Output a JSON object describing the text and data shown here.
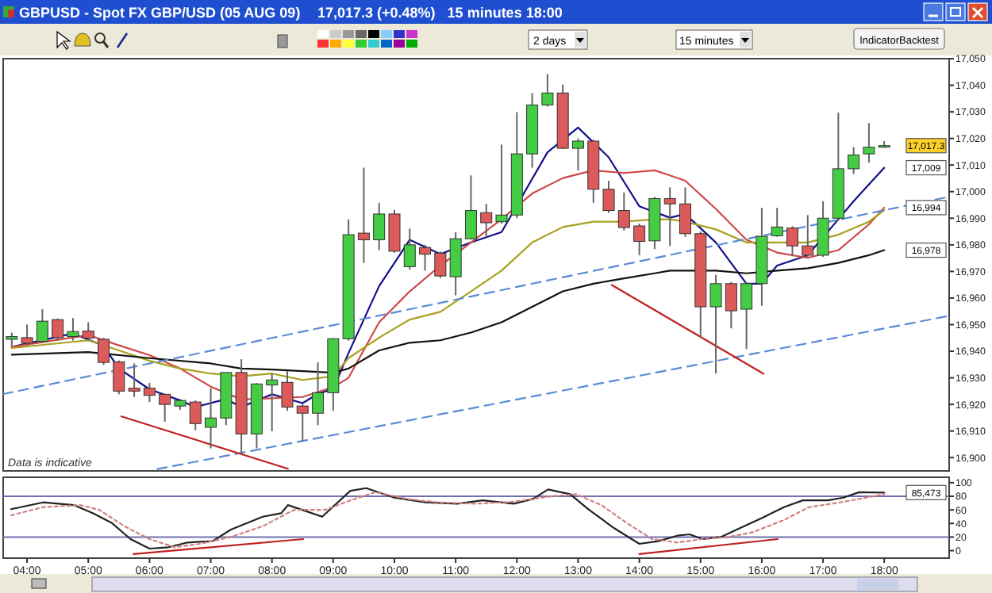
{
  "chart_data": [
    {
      "type": "candlestick",
      "title": "GBPUSD - Spot FX GBP/USD (05 AUG 09)",
      "subtitle": "17,017.3 (+0.48%)   15 minutes 18:00",
      "x": [
        3.75,
        4,
        4.25,
        4.5,
        4.75,
        5,
        5.25,
        5.5,
        5.75,
        6,
        6.25,
        6.5,
        6.75,
        7,
        7.25,
        7.5,
        7.75,
        8,
        8.25,
        8.5,
        8.75,
        9,
        9.25,
        9.5,
        9.75,
        10,
        10.25,
        10.5,
        10.75,
        11,
        11.25,
        11.5,
        11.75,
        12,
        12.25,
        12.5,
        12.75,
        13,
        13.25,
        13.5,
        13.75,
        14,
        14.25,
        14.5,
        14.75,
        15,
        15.25,
        15.5,
        15.75,
        16,
        16.25,
        16.5,
        16.75,
        17,
        17.25,
        17.5,
        17.75,
        18
      ],
      "ohlc": [
        [
          16944.5,
          16947,
          16942,
          16945.5
        ],
        [
          16945.1,
          16950,
          16942.2,
          16943
        ],
        [
          16943.7,
          16955.8,
          16943,
          16951.3
        ],
        [
          16951.9,
          16952.3,
          16944,
          16945.1
        ],
        [
          16945.5,
          16952.5,
          16944,
          16947.4
        ],
        [
          16947.6,
          16950.9,
          16944,
          16944.9
        ],
        [
          16944.5,
          16945,
          16934.8,
          16935.8
        ],
        [
          16936,
          16936.5,
          16923.8,
          16925
        ],
        [
          16926.1,
          16935.4,
          16922.8,
          16925
        ],
        [
          16926.1,
          16928.1,
          16920.9,
          16923.4
        ],
        [
          16923.8,
          16924,
          16913.5,
          16920
        ],
        [
          16919.4,
          16922,
          16918,
          16921.5
        ],
        [
          16920.9,
          16921.5,
          16910.3,
          16912.8
        ],
        [
          16911.4,
          16926.1,
          16903.5,
          16914.9
        ],
        [
          16914.9,
          16932,
          16912.2,
          16932
        ],
        [
          16932,
          16937,
          16901.6,
          16908.9
        ],
        [
          16908.9,
          16928,
          16903.5,
          16927.7
        ],
        [
          16927.3,
          16931.6,
          16909.9,
          16929.2
        ],
        [
          16928.3,
          16932.5,
          16917.6,
          16919
        ],
        [
          16919.4,
          16920,
          16906,
          16916.7
        ],
        [
          16916.7,
          16935.8,
          16912.2,
          16924.4
        ],
        [
          16924.4,
          16945,
          16917.6,
          16944.7
        ],
        [
          16944.7,
          16989.6,
          16944,
          16983.8
        ],
        [
          16984.4,
          17009,
          16973.2,
          16981.9
        ],
        [
          16981.9,
          16995.8,
          16978,
          16991.6
        ],
        [
          16991.6,
          16993.1,
          16977,
          16977.6
        ],
        [
          16971.8,
          16986.1,
          16970.7,
          16980
        ],
        [
          16979,
          16980,
          16970.3,
          16976.5
        ],
        [
          16976.9,
          16977.5,
          16967.5,
          16968.3
        ],
        [
          16968,
          16984.8,
          16961,
          16982.3
        ],
        [
          16982.3,
          17006.1,
          16982,
          16992.9
        ],
        [
          16992.1,
          16995.4,
          16982.9,
          16988.3
        ],
        [
          16988.7,
          17017.7,
          16988,
          16991.2
        ],
        [
          16991.2,
          17029.9,
          16990,
          17014.2
        ],
        [
          17014.2,
          17037.1,
          17009,
          17032.6
        ],
        [
          17032.6,
          17044.2,
          17032,
          17037.1
        ],
        [
          17037.1,
          17040.3,
          17016,
          17016.3
        ],
        [
          17016.3,
          17020,
          17008,
          17019
        ],
        [
          17019,
          17019.5,
          16995.8,
          17000.9
        ],
        [
          17000.9,
          17004.1,
          16992,
          16992.9
        ],
        [
          16992.9,
          16999.7,
          16985.4,
          16986.5
        ],
        [
          16987.1,
          16988,
          16976.1,
          16981.3
        ],
        [
          16981.5,
          16998,
          16978.4,
          16997.4
        ],
        [
          16997.4,
          17001.6,
          16979.6,
          16995.4
        ],
        [
          16995.4,
          17001.6,
          16983,
          16984.2
        ],
        [
          16984.2,
          16985,
          16945.1,
          16956.7
        ],
        [
          16956.7,
          16968.7,
          16931.6,
          16965.4
        ],
        [
          16965.4,
          16966,
          16948.6,
          16955.2
        ],
        [
          16955.8,
          16966,
          16940.8,
          16965.4
        ],
        [
          16965.4,
          16993.9,
          16957.1,
          16983.2
        ],
        [
          16983.4,
          16993.9,
          16983,
          16986.7
        ],
        [
          16986.3,
          16987,
          16975.7,
          16979.6
        ],
        [
          16979.6,
          16991.2,
          16975.5,
          16976.1
        ],
        [
          16976.1,
          16996.4,
          16975.5,
          16990
        ],
        [
          16990,
          17029.7,
          16989,
          17008.6
        ],
        [
          17008.6,
          17016.7,
          17006.7,
          17013.8
        ],
        [
          17014.2,
          17025.8,
          17010.9,
          17016.7
        ],
        [
          17016.8,
          17019,
          17016.5,
          17017.3
        ]
      ],
      "series": [
        {
          "type": "line",
          "color": "#11118a",
          "x": [
            3.75,
            4.75,
            5.25,
            5.5,
            6,
            6.5,
            6.75,
            7.25,
            7.5,
            8,
            8.5,
            8.75,
            9,
            9.25,
            9.75,
            10.25,
            10.75,
            11.25,
            11.75,
            12,
            12.5,
            13,
            13.5,
            14,
            14.5,
            14.75,
            15.25,
            15.75,
            16,
            16.25,
            16.75,
            17.25,
            17.5,
            18
          ],
          "values": [
            16941.6,
            16946.7,
            16942,
            16933.5,
            16925.7,
            16921.5,
            16919,
            16922,
            16919,
            16923.8,
            16920.5,
            16924,
            16925.8,
            16939.3,
            16964.5,
            16981.9,
            16976.5,
            16980.9,
            16984.8,
            null,
            17014.8,
            17024.1,
            17012.9,
            16994.5,
            16990.2,
            16991.6,
            16980.9,
            16965.4,
            16965.4,
            16972.2,
            16976.1,
            16989.6,
            16996.4,
            17009
          ]
        },
        {
          "type": "line",
          "color": "#d04848",
          "x": [
            3.75,
            5,
            5.5,
            6,
            6.5,
            7,
            7.5,
            8,
            8.5,
            9,
            9.25,
            9.75,
            10.25,
            10.75,
            11.25,
            11.75,
            12.25,
            12.75,
            13.25,
            13.75,
            14.25,
            14.5,
            14.75,
            15.25,
            15.75,
            16.25,
            16.75,
            17.25,
            17.75,
            18
          ],
          "values": [
            16941.6,
            16946.1,
            16942.2,
            16938.5,
            16933.5,
            16926.7,
            16921.9,
            16922.3,
            16922.8,
            16926.5,
            16930,
            16950.9,
            16962.5,
            16972.2,
            16980.9,
            16989.6,
            16999.3,
            17005.1,
            17008,
            17007,
            17008,
            17006.1,
            17004.1,
            16993.5,
            16981.9,
            16977.1,
            16975.1,
            16978,
            16987.7,
            16994
          ]
        },
        {
          "type": "line",
          "color": "#a8a020",
          "x": [
            3.75,
            5,
            5.5,
            6,
            6.5,
            7,
            7.5,
            8,
            8.5,
            9,
            9.25,
            9.75,
            10.25,
            10.75,
            11.25,
            11.75,
            12.25,
            12.75,
            13.25,
            13.75,
            14.25,
            14.5,
            14.75,
            15.25,
            15.75,
            16.25,
            16.75,
            17.25,
            17.75,
            18
          ],
          "values": [
            16941.2,
            16944.1,
            16940.3,
            16936.4,
            16933.5,
            16931.6,
            16930.6,
            16931.6,
            16929.2,
            16930.6,
            16937.4,
            16945.1,
            16951.9,
            16954.8,
            16962.5,
            16970.3,
            16980.9,
            16986.7,
            16988.7,
            16988.7,
            16989.6,
            16989.6,
            16988.7,
            16985.8,
            16980.9,
            16980.9,
            16980.9,
            16983.8,
            16988.7,
            16993
          ]
        },
        {
          "type": "line",
          "color": "#111111",
          "x": [
            3.75,
            5,
            6,
            7,
            7.5,
            8,
            8.5,
            9,
            9.25,
            9.75,
            10.25,
            10.75,
            11.25,
            11.75,
            12.25,
            12.75,
            13.25,
            13.75,
            14.25,
            14.5,
            14.75,
            15.25,
            15.75,
            16.25,
            16.75,
            17.25,
            17.75,
            18
          ],
          "values": [
            16938.7,
            16939.7,
            16937.4,
            16935.4,
            16933.5,
            16933.1,
            16932.5,
            16931.9,
            16933.5,
            16940.3,
            16943.2,
            16944.1,
            16947,
            16950.9,
            16956.7,
            16962.5,
            16965.4,
            16967.4,
            16969.3,
            16970.3,
            16970.3,
            16970.3,
            16969.3,
            16970.3,
            16971.2,
            16973.2,
            16976.1,
            16978
          ]
        },
        {
          "type": "line",
          "color": "#5b8bd6",
          "line_style": "dashed",
          "x": [
            3.61,
            19.06
          ],
          "values": [
            16923.9,
            16998.1
          ]
        },
        {
          "type": "line",
          "color": "#5b8bd6",
          "line_style": "dashed",
          "x": [
            6.13,
            19.06
          ],
          "values": [
            16895.7,
            16953.3
          ]
        },
        {
          "type": "line",
          "color": "#c02020",
          "x": [
            5.54,
            8.26
          ],
          "values": [
            16915.5,
            16895.8
          ]
        },
        {
          "type": "line",
          "color": "#c02020",
          "x": [
            13.55,
            16.03
          ],
          "values": [
            16964.9,
            16931.5
          ]
        }
      ],
      "xlim": [
        3.61,
        19.06
      ],
      "ylim": [
        16895,
        17050
      ],
      "yticks": [
        {
          "value": 16900,
          "label": "16,900"
        },
        {
          "value": 16910,
          "label": "16,910"
        },
        {
          "value": 16920,
          "label": "16,920"
        },
        {
          "value": 16930,
          "label": "16,930"
        },
        {
          "value": 16940,
          "label": "16,940"
        },
        {
          "value": 16950,
          "label": "16,950"
        },
        {
          "value": 16960,
          "label": "16,960"
        },
        {
          "value": 16970,
          "label": "16,970"
        },
        {
          "value": 16980,
          "label": "16,980"
        },
        {
          "value": 16990,
          "label": "16,990"
        },
        {
          "value": 17000,
          "label": "17,000"
        },
        {
          "value": 17010,
          "label": "17,010"
        },
        {
          "value": 17020,
          "label": "17,020"
        },
        {
          "value": 17030,
          "label": "17,030"
        },
        {
          "value": 17040,
          "label": "17,040"
        },
        {
          "value": 17050,
          "label": "17,050"
        }
      ],
      "tick_labels": "y",
      "annotations": [
        "Data is indicative",
        "2 days",
        "15 minutes",
        "IndicatorBacktest",
        {
          "text": "17,017.3",
          "y": 17017.3
        },
        {
          "text": "17,009",
          "y": 17009
        },
        {
          "text": "16,994",
          "y": 16994
        },
        {
          "text": "16,978",
          "y": 16978
        }
      ]
    },
    {
      "type": "line",
      "xlim": [
        3.61,
        19.06
      ],
      "ylim": [
        -11,
        108
      ],
      "series": [
        {
          "color": "#222222",
          "x": [
            3.74,
            4.26,
            4.77,
            5.08,
            5.38,
            5.69,
            6,
            6.31,
            6.62,
            7.03,
            7.33,
            7.85,
            8.15,
            8.26,
            8.56,
            8.82,
            9.28,
            9.54,
            10,
            10.51,
            11.03,
            11.44,
            11.95,
            12.26,
            12.51,
            12.87,
            13.18,
            13.59,
            14,
            14.31,
            14.62,
            14.82,
            15.03,
            15.33,
            15.64,
            16,
            16.36,
            16.67,
            17.08,
            17.33,
            17.59,
            18
          ],
          "values": [
            61,
            71,
            67,
            55,
            41,
            17,
            3,
            5,
            12,
            14,
            31,
            50,
            55,
            67,
            58,
            50,
            88,
            92,
            78,
            71,
            69,
            74,
            69,
            76,
            90,
            83,
            60,
            33,
            10,
            14,
            22,
            24,
            17,
            20,
            33,
            48,
            64,
            74,
            74,
            78,
            86,
            85.473
          ]
        },
        {
          "color": "#d08080",
          "line_style": "dotted",
          "x": [
            3.74,
            4.26,
            4.87,
            5.18,
            5.59,
            6,
            6.41,
            6.82,
            7.33,
            7.85,
            8.36,
            8.87,
            9.28,
            9.69,
            10.21,
            10.72,
            11.33,
            11.95,
            12.56,
            12.97,
            13.38,
            13.79,
            14.21,
            14.62,
            15.03,
            15.44,
            15.85,
            16.36,
            16.77,
            17.28,
            18
          ],
          "values": [
            52,
            64,
            67,
            60,
            36,
            17,
            5,
            10,
            20,
            36,
            60,
            60,
            74,
            86,
            76,
            71,
            69,
            72,
            80,
            83,
            67,
            41,
            17,
            12,
            17,
            20,
            27,
            45,
            64,
            71,
            83
          ]
        },
        {
          "color": "#c02020",
          "x": [
            5.74,
            8.51
          ],
          "values": [
            -5,
            17
          ]
        },
        {
          "color": "#c02020",
          "x": [
            14,
            16.26
          ],
          "values": [
            -5,
            17
          ]
        }
      ],
      "annotations": [
        {
          "text": "85,473",
          "y": 85.473
        }
      ],
      "ref_lines": [
        {
          "axis": "y",
          "value": 80,
          "color": "#7070b0"
        },
        {
          "axis": "y",
          "value": 20,
          "color": "#7070b0"
        }
      ],
      "yticks": [
        0,
        20,
        40,
        60,
        80,
        100
      ],
      "xticks": [
        {
          "value": 4,
          "label": "04:00"
        },
        {
          "value": 5,
          "label": "05:00"
        },
        {
          "value": 6,
          "label": "06:00"
        },
        {
          "value": 7,
          "label": "07:00"
        },
        {
          "value": 8,
          "label": "08:00"
        },
        {
          "value": 9,
          "label": "09:00"
        },
        {
          "value": 10,
          "label": "10:00"
        },
        {
          "value": 11,
          "label": "11:00"
        },
        {
          "value": 12,
          "label": "12:00"
        },
        {
          "value": 13,
          "label": "13:00"
        },
        {
          "value": 14,
          "label": "14:00"
        },
        {
          "value": 15,
          "label": "15:00"
        },
        {
          "value": 16,
          "label": "16:00"
        },
        {
          "value": 17,
          "label": "17:00"
        },
        {
          "value": 18,
          "label": "18:00"
        }
      ]
    }
  ]
}
